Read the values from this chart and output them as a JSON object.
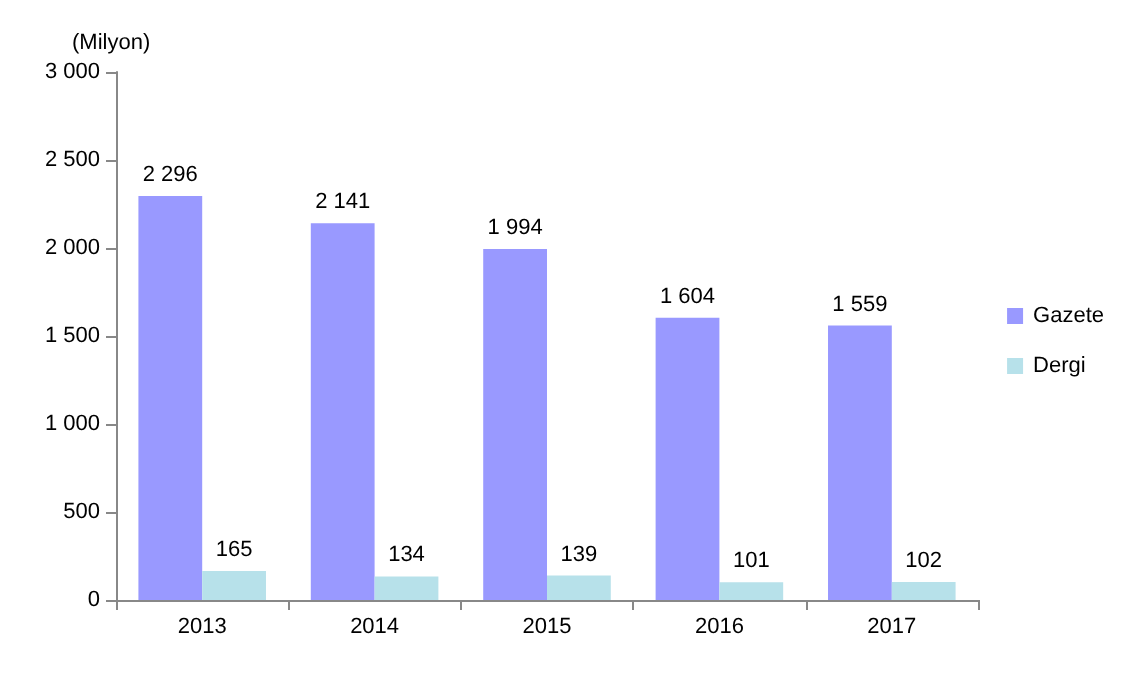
{
  "chart_data": {
    "type": "bar",
    "ylabel": "(Milyon)",
    "categories": [
      "2013",
      "2014",
      "2015",
      "2016",
      "2017"
    ],
    "series": [
      {
        "name": "Gazete",
        "color": "#9999ff",
        "values": [
          2296,
          2141,
          1994,
          1604,
          1559
        ],
        "value_labels": [
          "2 296",
          "2 141",
          "1 994",
          "1 604",
          "1 559"
        ]
      },
      {
        "name": "Dergi",
        "color": "#b7e1ea",
        "values": [
          165,
          134,
          139,
          101,
          102
        ],
        "value_labels": [
          "165",
          "134",
          "139",
          "101",
          "102"
        ]
      }
    ],
    "ylim": [
      0,
      3000
    ],
    "yticks": [
      {
        "value": 0,
        "label": "0"
      },
      {
        "value": 500,
        "label": "500"
      },
      {
        "value": 1000,
        "label": "1 000"
      },
      {
        "value": 1500,
        "label": "1 500"
      },
      {
        "value": 2000,
        "label": "2 000"
      },
      {
        "value": 2500,
        "label": "2 500"
      },
      {
        "value": 3000,
        "label": "3 000"
      }
    ],
    "grid": false,
    "legend": "right"
  }
}
